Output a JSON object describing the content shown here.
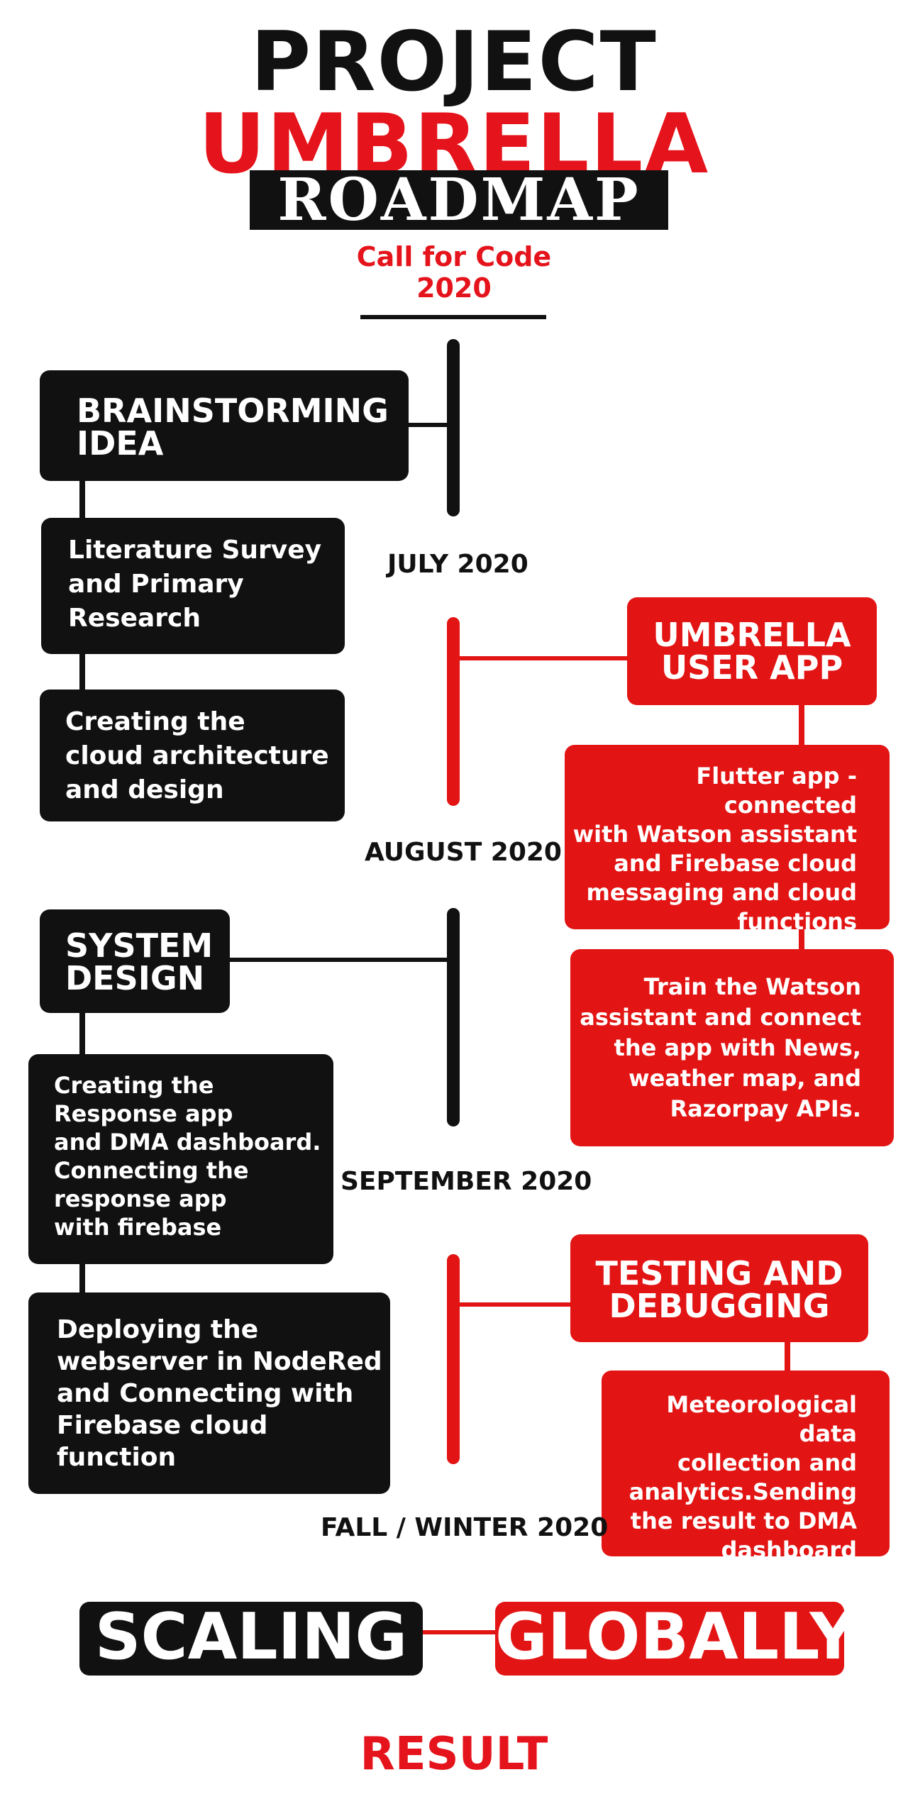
{
  "title": {
    "part1": "PROJECT",
    "part2": "UMBRELLA"
  },
  "badge": "ROADMAP",
  "subtitle": {
    "line1": "Call for Code",
    "line2": "2020"
  },
  "dates": {
    "july": "JULY 2020",
    "august": "AUGUST 2020",
    "september": "SEPTEMBER 2020",
    "fall_winter": "FALL / WINTER 2020"
  },
  "left": {
    "brainstorm": {
      "line1": "BRAINSTORMING",
      "line2": "IDEA"
    },
    "literature": {
      "line1": "Literature Survey",
      "line2": "and Primary",
      "line3": "Research"
    },
    "cloud": {
      "line1": "Creating the",
      "line2": "cloud architecture",
      "line3": "and design"
    },
    "system_design": {
      "line1": "SYSTEM",
      "line2": "DESIGN"
    },
    "response_app": {
      "line1": "Creating the",
      "line2": "Response app",
      "line3": "and DMA dashboard.",
      "line4": "Connecting the",
      "line5": "response app",
      "line6": "with firebase"
    },
    "webserver": {
      "line1": "Deploying the",
      "line2": "webserver in NodeRed",
      "line3": "and Connecting with",
      "line4": "Firebase cloud",
      "line5": "function"
    }
  },
  "right": {
    "user_app": {
      "line1": "UMBRELLA",
      "line2": "USER APP"
    },
    "flutter": {
      "line1": "Flutter app - connected",
      "line2": "with Watson assistant",
      "line3": "and Firebase cloud",
      "line4": "messaging and cloud",
      "line5": "functions"
    },
    "train": {
      "line1": "Train the Watson",
      "line2": "assistant and connect",
      "line3": "the app with News,",
      "line4": "weather map, and",
      "line5": "Razorpay APIs."
    },
    "testing": {
      "line1": "TESTING AND",
      "line2": "DEBUGGING"
    },
    "meteo": {
      "line1": "Meteorological data",
      "line2": "collection and",
      "line3": "analytics.Sending",
      "line4": "the result to DMA",
      "line5": "dashboard"
    }
  },
  "banner": {
    "left": "SCALING",
    "right": "GLOBALLY"
  },
  "result": "RESULT",
  "colors": {
    "black": "#111111",
    "red": "#e21414"
  }
}
